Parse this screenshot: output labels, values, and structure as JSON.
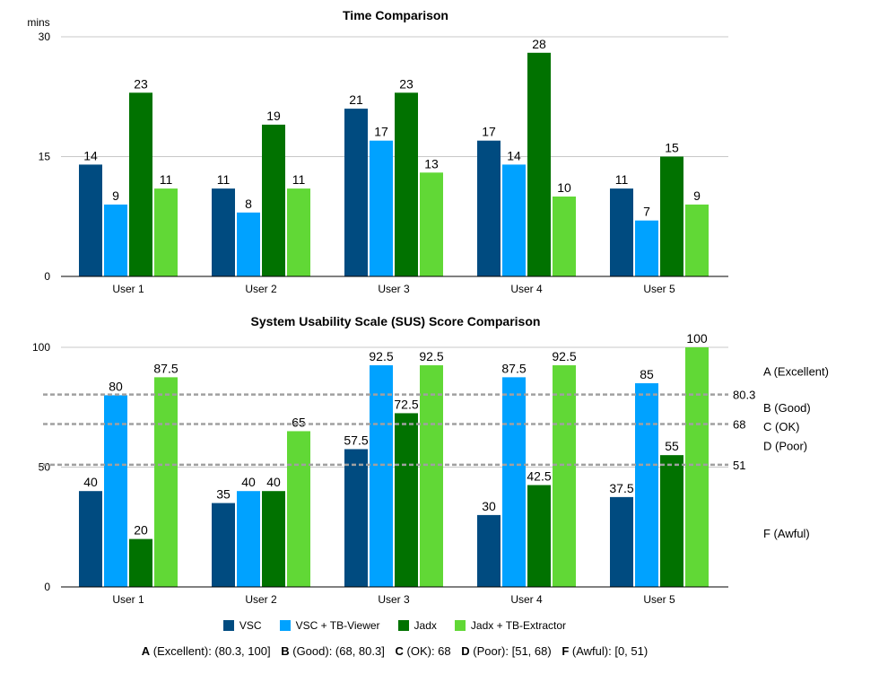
{
  "chart_data": [
    {
      "type": "bar",
      "title": "Time Comparison",
      "ylabel": "mins",
      "ylim": [
        0,
        30
      ],
      "yticks": [
        0,
        15,
        30
      ],
      "grid": true,
      "categories": [
        "User 1",
        "User 2",
        "User 3",
        "User 4",
        "User 5"
      ],
      "series": [
        {
          "name": "VSC",
          "values": [
            14,
            11,
            21,
            17,
            11
          ]
        },
        {
          "name": "VSC + TB-Viewer",
          "values": [
            9,
            8,
            17,
            14,
            7
          ]
        },
        {
          "name": "Jadx",
          "values": [
            23,
            19,
            23,
            28,
            15
          ]
        },
        {
          "name": "Jadx + TB-Extractor",
          "values": [
            11,
            11,
            13,
            10,
            9
          ]
        }
      ]
    },
    {
      "type": "bar",
      "title": "System Usability Scale (SUS) Score Comparison",
      "ylabel": "",
      "ylim": [
        0,
        100
      ],
      "yticks": [
        0,
        50,
        100
      ],
      "grid": true,
      "categories": [
        "User 1",
        "User 2",
        "User 3",
        "User 4",
        "User 5"
      ],
      "series": [
        {
          "name": "VSC",
          "values": [
            40,
            35,
            57.5,
            30,
            37.5
          ]
        },
        {
          "name": "VSC + TB-Viewer",
          "values": [
            80,
            40,
            92.5,
            87.5,
            85
          ]
        },
        {
          "name": "Jadx",
          "values": [
            20,
            40,
            72.5,
            42.5,
            55
          ]
        },
        {
          "name": "Jadx + TB-Extractor",
          "values": [
            87.5,
            65,
            92.5,
            92.5,
            100
          ]
        }
      ],
      "thresholds": [
        {
          "value": 80.3,
          "label": "80.3"
        },
        {
          "value": 68,
          "label": "68"
        },
        {
          "value": 51,
          "label": "51"
        }
      ],
      "grade_labels": [
        {
          "label": "A (Excellent)",
          "value": 90
        },
        {
          "label": "B (Good)",
          "value": 75
        },
        {
          "label": "C (OK)",
          "value": 67
        },
        {
          "label": "D (Poor)",
          "value": 59
        },
        {
          "label": "F (Awful)",
          "value": 22.5
        }
      ]
    }
  ],
  "legend_placement": "bottom",
  "colors": {
    "VSC": "#004b80",
    "VSC + TB-Viewer": "#00a2ff",
    "Jadx": "#017200",
    "Jadx + TB-Extractor": "#61d836",
    "grid": "#c8c8c8",
    "threshold": "#a0a0a0"
  },
  "grade_key": [
    {
      "letter": "A",
      "desc": "(Excellent): (80.3, 100]"
    },
    {
      "letter": "B",
      "desc": "(Good): (68, 80.3]"
    },
    {
      "letter": "C",
      "desc": "(OK): 68"
    },
    {
      "letter": "D",
      "desc": "(Poor): [51, 68)"
    },
    {
      "letter": "F",
      "desc": "(Awful): [0, 51)"
    }
  ]
}
